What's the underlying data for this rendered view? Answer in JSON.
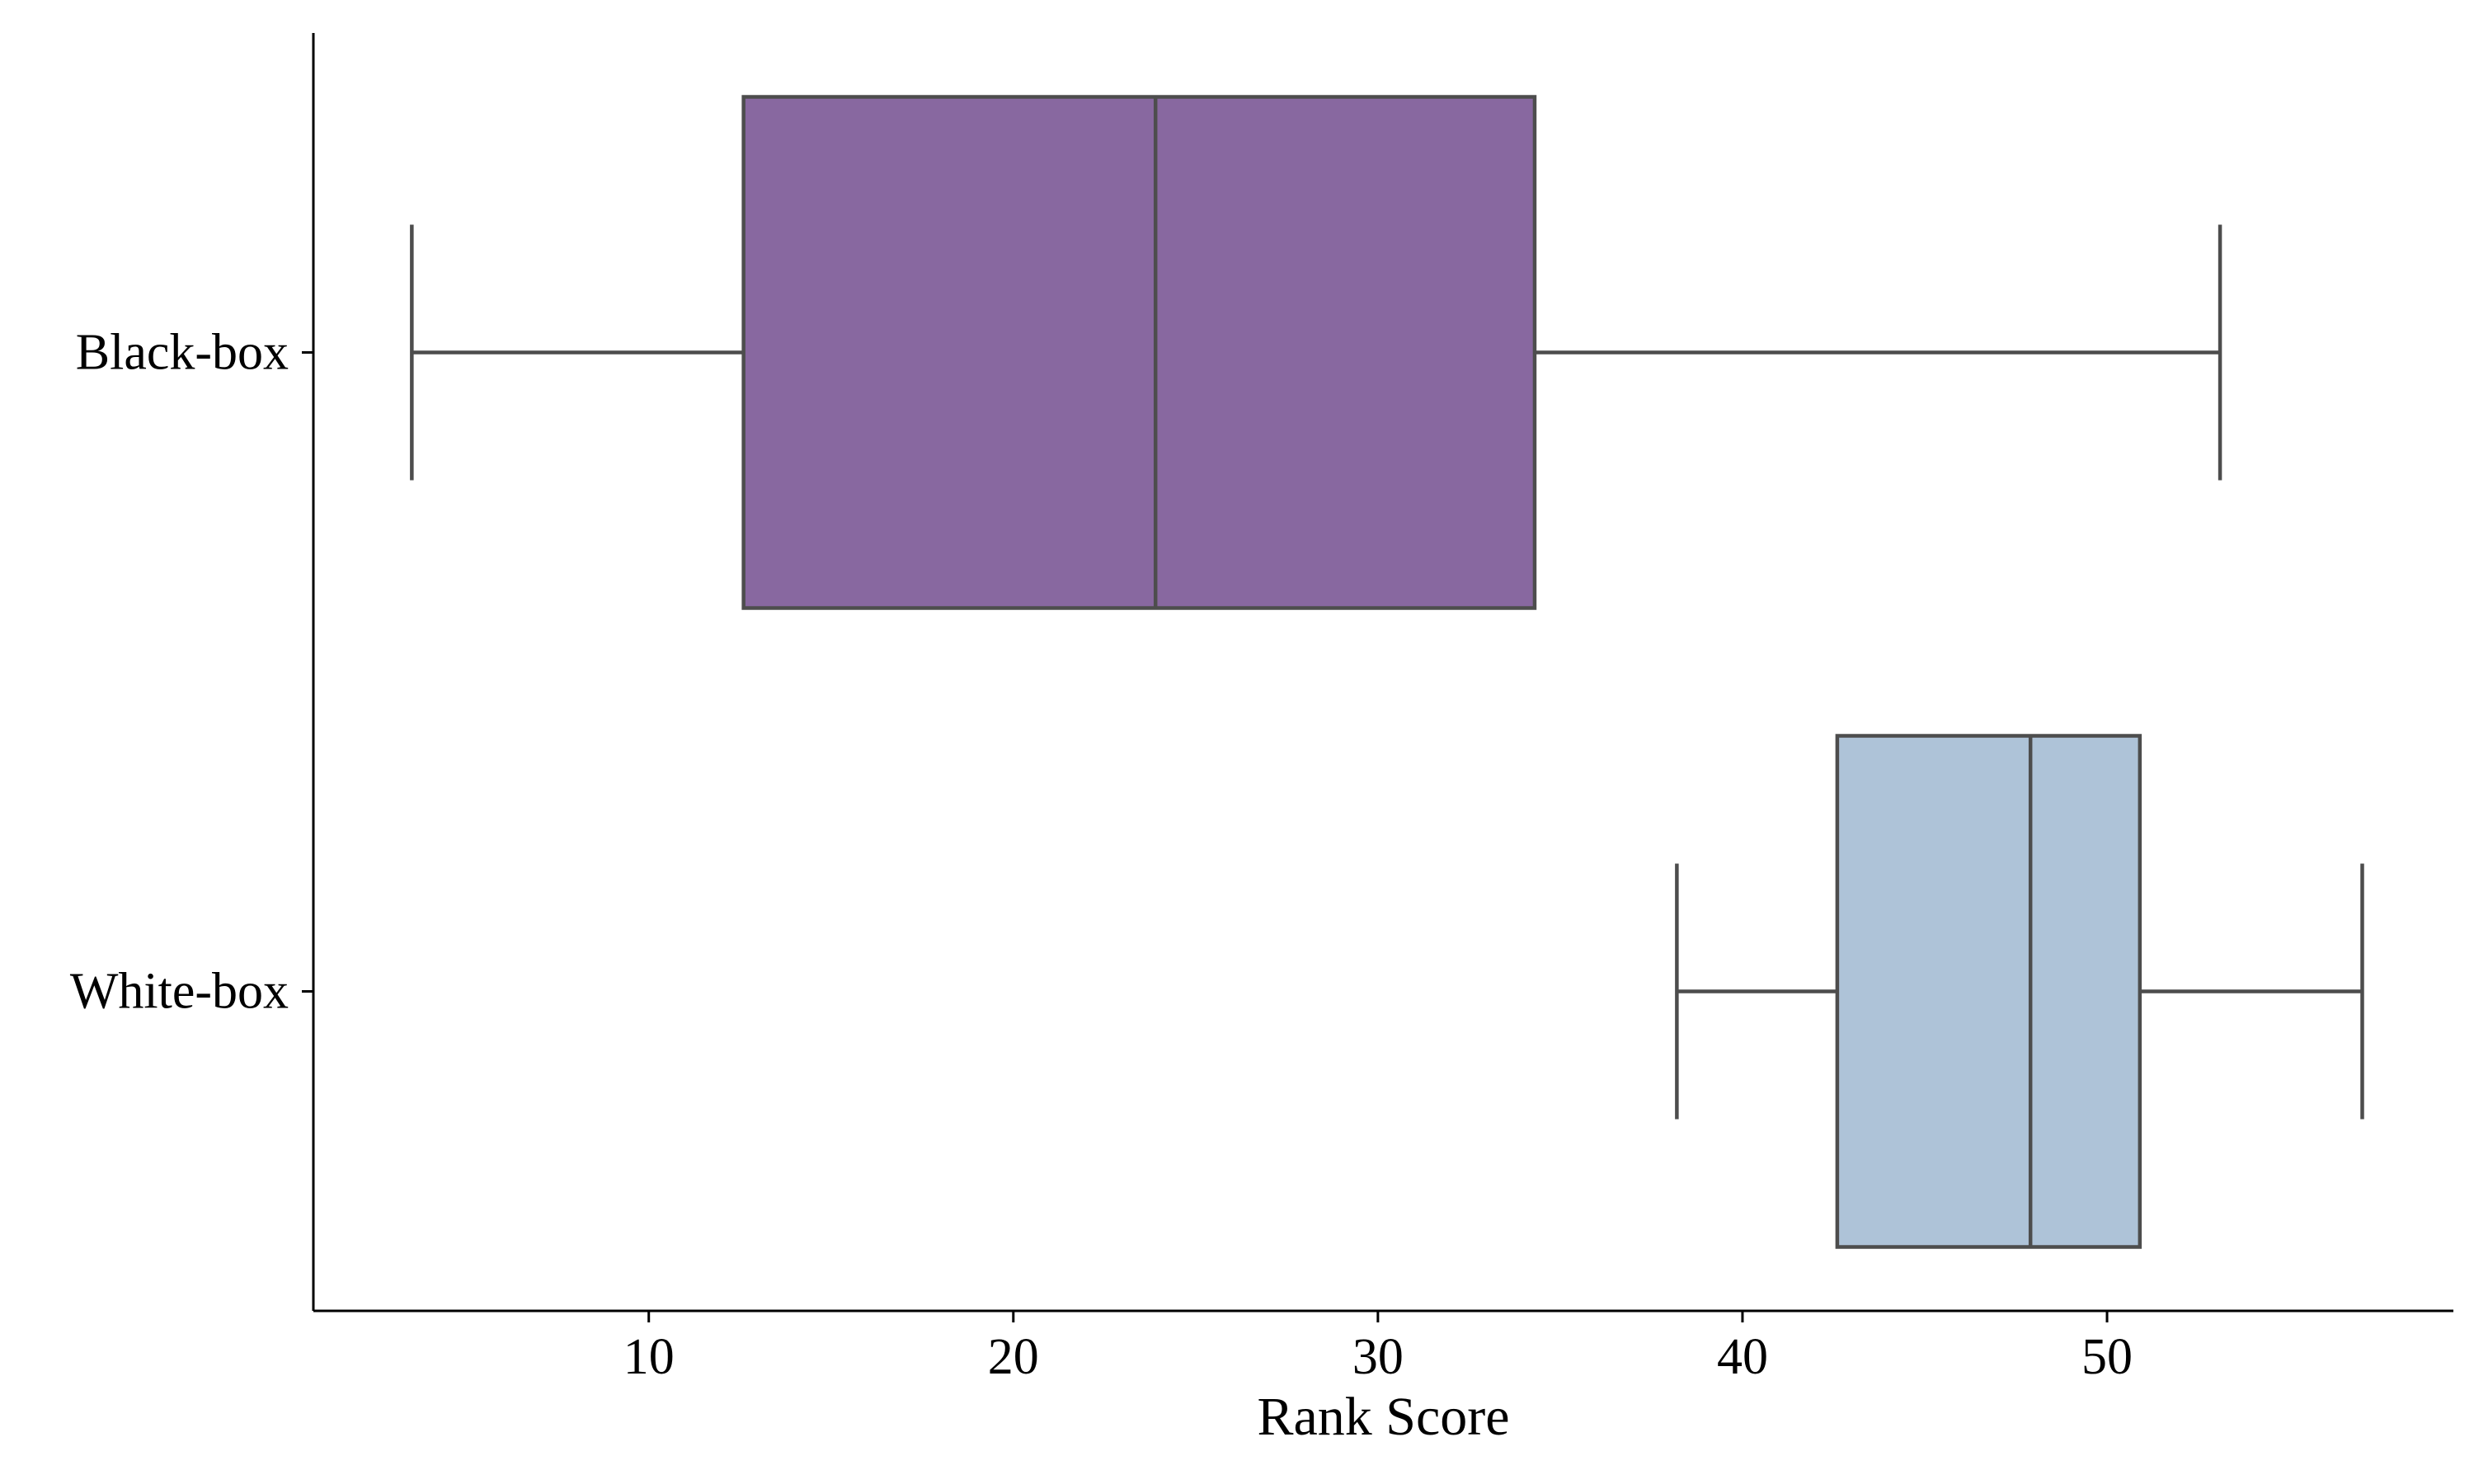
{
  "chart_data": {
    "type": "box",
    "orientation": "horizontal",
    "title": "",
    "xlabel": "Rank Score",
    "ylabel": "",
    "xlim": [
      0.8,
      59.5
    ],
    "xticks": [
      10,
      20,
      30,
      40,
      50
    ],
    "categories": [
      "Black-box",
      "White-box"
    ],
    "boxes": [
      {
        "category": "Black-box",
        "whisker_low": 3.5,
        "q1": 12.6,
        "median": 23.9,
        "q3": 34.3,
        "whisker_high": 53.1,
        "color": "#8868a0"
      },
      {
        "category": "White-box",
        "whisker_low": 38.2,
        "q1": 42.6,
        "median": 47.9,
        "q3": 50.9,
        "whisker_high": 57.0,
        "color": "#aec3d8"
      }
    ],
    "line_color": "#4d4d4d",
    "grid": false,
    "legend": "none"
  }
}
